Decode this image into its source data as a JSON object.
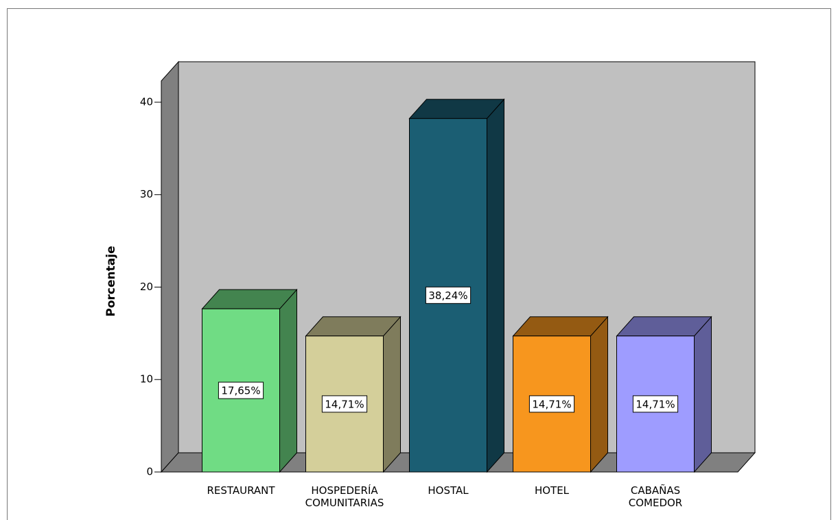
{
  "chart_data": {
    "type": "bar3d",
    "y_label": "Porcentaje",
    "categories": [
      "RESTAURANT",
      "HOSPEDERÍA COMUNITARIAS",
      "HOSTAL",
      "HOTEL",
      "CABAÑAS COMEDOR"
    ],
    "values": [
      17.65,
      14.71,
      38.24,
      14.71,
      14.71
    ],
    "value_labels": [
      "17,65%",
      "14,71%",
      "38,24%",
      "14,71%",
      "14,71%"
    ],
    "colors": [
      "#70dc84",
      "#d4cf9a",
      "#1b5e73",
      "#f7961e",
      "#9e9cff"
    ],
    "ylim": [
      0,
      42.3
    ],
    "yticks": [
      0,
      10,
      20,
      30,
      40
    ],
    "grid": false
  }
}
